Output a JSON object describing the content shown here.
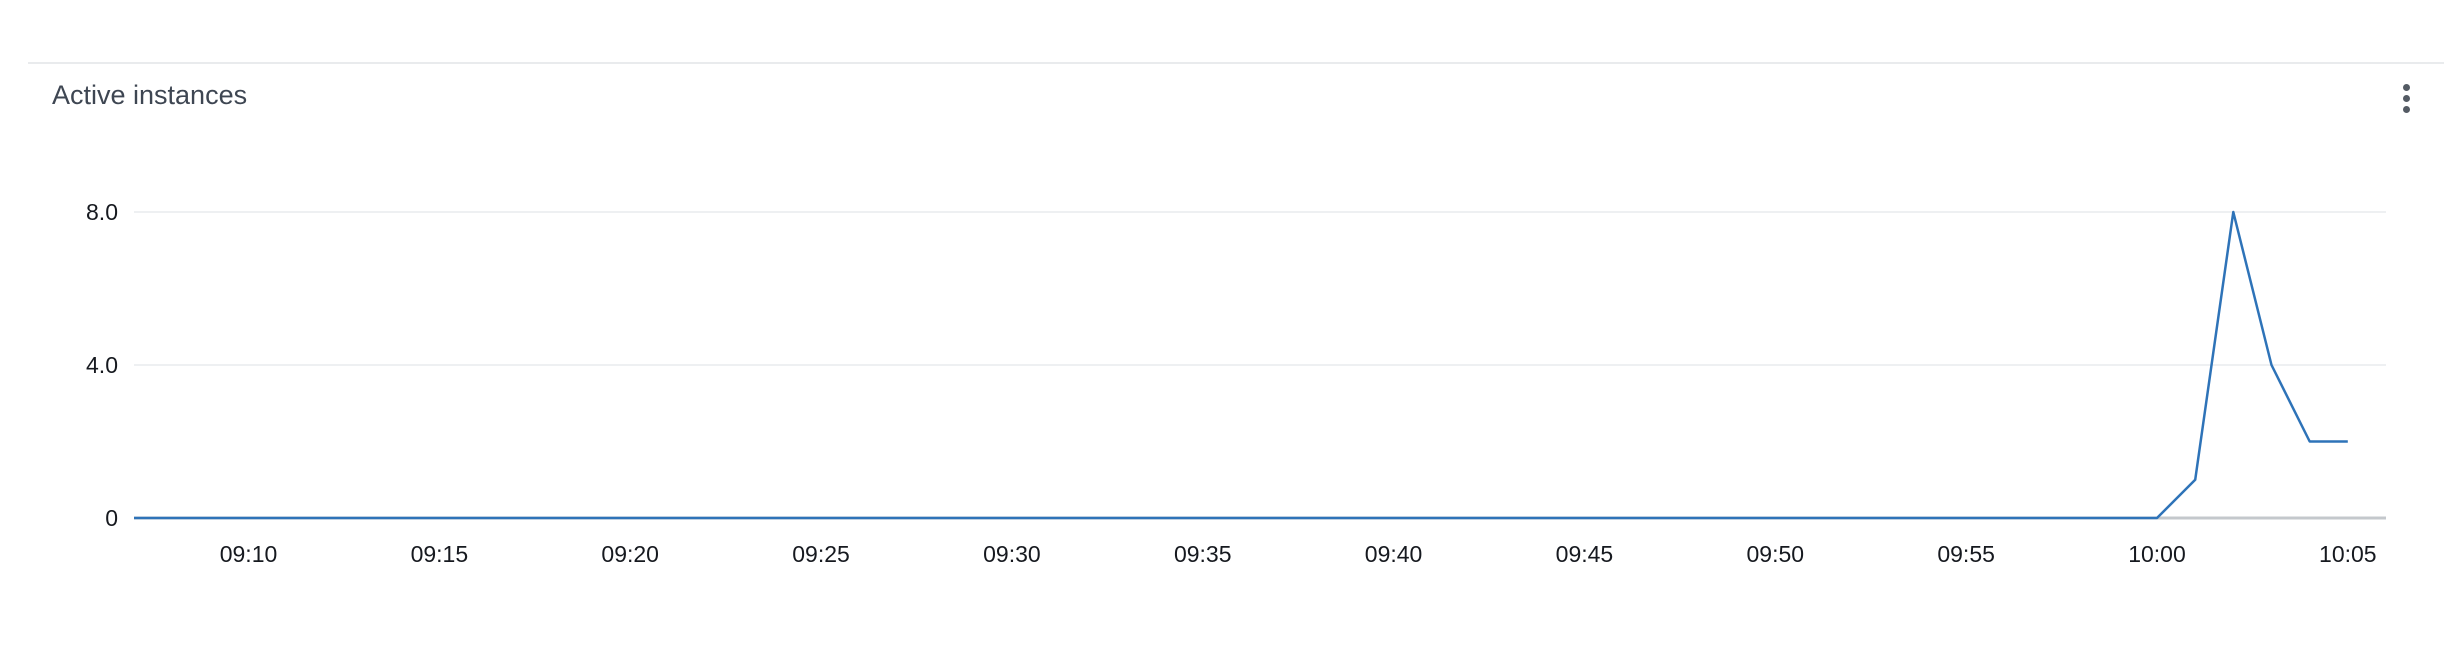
{
  "widget": {
    "title": "Active instances",
    "menu_icon": "vertical-ellipsis-icon"
  },
  "chart_data": {
    "type": "line",
    "title": "Active instances",
    "xlabel": "",
    "ylabel": "",
    "x_unit": "minutes",
    "xlim": [
      "09:07",
      "10:06"
    ],
    "ylim": [
      0,
      8
    ],
    "y_ticks": [
      0,
      4,
      8
    ],
    "y_tick_labels": [
      "0",
      "4.0",
      "8.0"
    ],
    "x_ticks": [
      "09:10",
      "09:15",
      "09:20",
      "09:25",
      "09:30",
      "09:35",
      "09:40",
      "09:45",
      "09:50",
      "09:55",
      "10:00",
      "10:05"
    ],
    "grid": true,
    "legend": false,
    "colors": {
      "line": "#2e73b8",
      "grid": "#e9ebed",
      "baseline": "#c4c8cc"
    },
    "series": [
      {
        "x": [
          "09:07",
          "10:00",
          "10:01",
          "10:02",
          "10:03",
          "10:04",
          "10:05"
        ],
        "values": [
          0,
          0,
          1,
          8,
          4,
          2,
          2
        ]
      }
    ]
  }
}
